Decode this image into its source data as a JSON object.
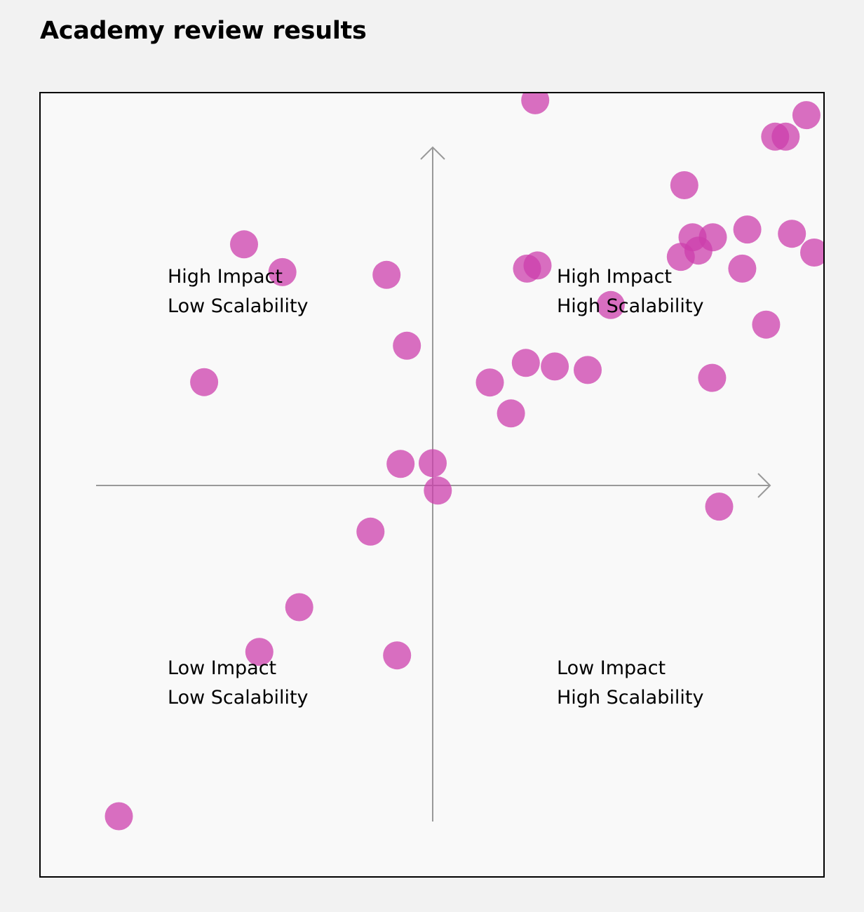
{
  "title": "Academy review results",
  "colors": {
    "point": "#cc3fac",
    "axis": "#999999",
    "frame": "#000000",
    "background": "#f2f2f2",
    "plot_background": "#f9f9f9"
  },
  "chart_data": {
    "type": "scatter",
    "title": "Academy review results",
    "xlabel": "",
    "ylabel": "",
    "xlim": [
      -1,
      1
    ],
    "ylim": [
      -1,
      1
    ],
    "grid": false,
    "axes_through_origin": true,
    "quadrant_labels": {
      "top_left": [
        "High Impact",
        "Low Scalability"
      ],
      "top_right": [
        "High Impact",
        "High Scalability"
      ],
      "bottom_left": [
        "Low Impact",
        "Low Scalability"
      ],
      "bottom_right": [
        "Low Impact",
        "High Scalability"
      ]
    },
    "points": [
      {
        "x": 0.262,
        "y": 0.984
      },
      {
        "x": 0.955,
        "y": 0.946
      },
      {
        "x": 0.875,
        "y": 0.891
      },
      {
        "x": 0.902,
        "y": 0.891
      },
      {
        "x": 0.643,
        "y": 0.767
      },
      {
        "x": 0.664,
        "y": 0.634
      },
      {
        "x": 0.716,
        "y": 0.634
      },
      {
        "x": 0.804,
        "y": 0.654
      },
      {
        "x": 0.918,
        "y": 0.643
      },
      {
        "x": 0.975,
        "y": 0.595
      },
      {
        "x": 0.634,
        "y": 0.584
      },
      {
        "x": 0.679,
        "y": 0.6
      },
      {
        "x": 0.791,
        "y": 0.554
      },
      {
        "x": 0.268,
        "y": 0.562
      },
      {
        "x": 0.241,
        "y": 0.554
      },
      {
        "x": 0.455,
        "y": 0.461
      },
      {
        "x": 0.852,
        "y": 0.411
      },
      {
        "x": 0.714,
        "y": 0.275
      },
      {
        "x": 0.238,
        "y": 0.313
      },
      {
        "x": 0.312,
        "y": 0.304
      },
      {
        "x": 0.396,
        "y": 0.295
      },
      {
        "x": 0.146,
        "y": 0.263
      },
      {
        "x": 0.2,
        "y": 0.184
      },
      {
        "x": -0.482,
        "y": 0.616
      },
      {
        "x": -0.384,
        "y": 0.545
      },
      {
        "x": -0.118,
        "y": 0.538
      },
      {
        "x": -0.066,
        "y": 0.357
      },
      {
        "x": -0.584,
        "y": 0.264
      },
      {
        "x": -0.082,
        "y": 0.055
      },
      {
        "x": 0.0,
        "y": 0.057
      },
      {
        "x": 0.013,
        "y": -0.013
      },
      {
        "x": 0.732,
        "y": -0.054
      },
      {
        "x": -0.159,
        "y": -0.118
      },
      {
        "x": -0.341,
        "y": -0.311
      },
      {
        "x": -0.443,
        "y": -0.425
      },
      {
        "x": -0.091,
        "y": -0.434
      },
      {
        "x": -0.802,
        "y": -0.845
      }
    ]
  }
}
